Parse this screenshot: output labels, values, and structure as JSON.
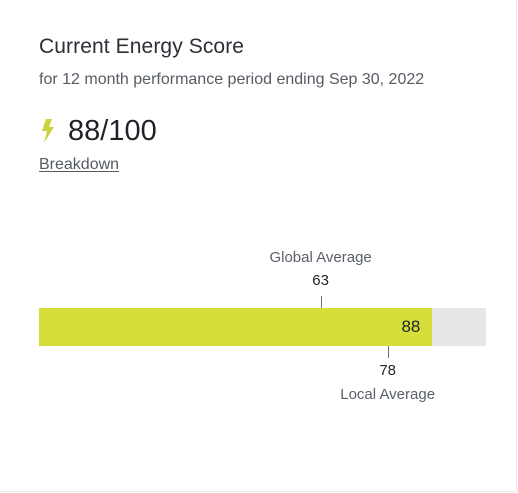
{
  "card": {
    "title": "Current Energy Score",
    "subtitle": "for 12 month performance period ending Sep 30, 2022",
    "score_text": "88/100",
    "breakdown_link": "Breakdown"
  },
  "score_bar": {
    "score": 88,
    "max": 100,
    "score_label": "88",
    "global_average": {
      "label": "Global Average",
      "value": 63,
      "value_text": "63"
    },
    "local_average": {
      "label": "Local Average",
      "value": 78,
      "value_text": "78"
    }
  },
  "colors": {
    "bar_fill": "#d6df3a",
    "bar_track": "#e6e7e9",
    "bolt_icon": "#c9d43a"
  },
  "icons": {
    "score_icon": "lightning-bolt-icon"
  }
}
